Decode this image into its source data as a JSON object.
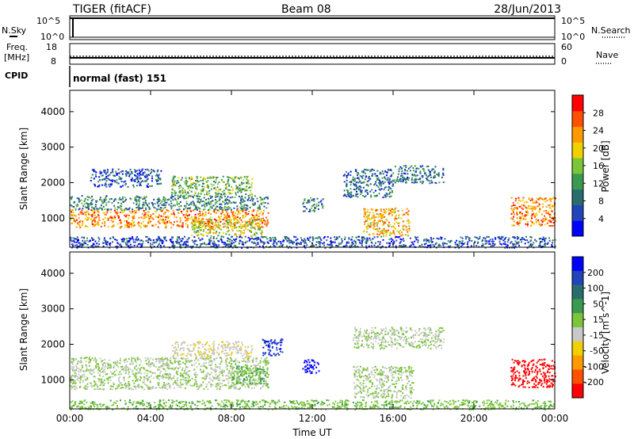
{
  "header": {
    "radar": "TIGER (fitACF)",
    "beam": "Beam 08",
    "date": "28/Jun/2013"
  },
  "sky_panel": {
    "left_label": "N.Sky",
    "right_label": "N.Search",
    "ticks": [
      "10^5",
      "10^0"
    ]
  },
  "freq_panel": {
    "left_label_1": "Freq.",
    "left_label_2": "[MHz]",
    "left_ticks": [
      "18",
      "8"
    ],
    "right_label": "Nave",
    "right_ticks": [
      "60",
      "0"
    ]
  },
  "cpid": {
    "label": "CPID",
    "value": "normal (fast) 151"
  },
  "chart_data": [
    {
      "type": "heatmap",
      "name": "power",
      "ylabel": "Slant Range [km]",
      "xlabel": "",
      "ylim": [
        180,
        4600
      ],
      "yticks": [
        "1000",
        "2000",
        "3000",
        "4000"
      ],
      "xticks": [
        "00:00",
        "04:00",
        "08:00",
        "12:00",
        "16:00",
        "20:00",
        "00:00"
      ],
      "colorbar": {
        "label": "Power [dB]",
        "ticks": [
          "28",
          "24",
          "20",
          "16",
          "12",
          "8",
          "4"
        ],
        "colors": [
          "#0000ff",
          "#2244bb",
          "#2a6d6d",
          "#3a9a50",
          "#7bc53a",
          "#f0d000",
          "#ff9900",
          "#ff5000",
          "#ff0000"
        ]
      },
      "regions": [
        {
          "t0": 0.0,
          "t1": 9.8,
          "r0": 750,
          "r1": 1250,
          "value": 24
        },
        {
          "t0": 0.0,
          "t1": 9.8,
          "r0": 1250,
          "r1": 1650,
          "value": 10
        },
        {
          "t0": 1.0,
          "t1": 4.5,
          "r0": 1900,
          "r1": 2400,
          "value": 6
        },
        {
          "t0": 5.0,
          "t1": 9.0,
          "r0": 1650,
          "r1": 2200,
          "value": 14
        },
        {
          "t0": 6.0,
          "t1": 9.5,
          "r0": 500,
          "r1": 1000,
          "value": 18
        },
        {
          "t0": 11.5,
          "t1": 12.5,
          "r0": 1200,
          "r1": 1600,
          "value": 10
        },
        {
          "t0": 13.5,
          "t1": 16.0,
          "r0": 1600,
          "r1": 2400,
          "value": 8
        },
        {
          "t0": 14.5,
          "t1": 16.8,
          "r0": 500,
          "r1": 1300,
          "value": 22
        },
        {
          "t0": 16.0,
          "t1": 18.5,
          "r0": 2000,
          "r1": 2500,
          "value": 8
        },
        {
          "t0": 21.8,
          "t1": 24.0,
          "r0": 800,
          "r1": 1600,
          "value": 24
        },
        {
          "t0": 0.0,
          "t1": 24.0,
          "r0": 180,
          "r1": 500,
          "value": 6
        }
      ]
    },
    {
      "type": "heatmap",
      "name": "velocity",
      "ylabel": "Slant Range [km]",
      "xlabel": "Time UT",
      "ylim": [
        180,
        4600
      ],
      "yticks": [
        "1000",
        "2000",
        "3000",
        "4000"
      ],
      "xticks": [
        "00:00",
        "04:00",
        "08:00",
        "12:00",
        "16:00",
        "20:00",
        "00:00"
      ],
      "colorbar": {
        "label": "Velocity [m s^-1]",
        "ticks": [
          "200",
          "100",
          "50",
          "15",
          "-15",
          "-50",
          "-100",
          "-200"
        ],
        "colors": [
          "#0000ff",
          "#2244bb",
          "#2a6d6d",
          "#3a9a50",
          "#7bc53a",
          "#c8c8c8",
          "#f0d000",
          "#ff9900",
          "#ff5000",
          "#ff0000"
        ]
      },
      "regions": [
        {
          "t0": 0.0,
          "t1": 9.8,
          "r0": 750,
          "r1": 1650,
          "value": 0
        },
        {
          "t0": 5.0,
          "t1": 9.0,
          "r0": 1650,
          "r1": 2100,
          "value": -30
        },
        {
          "t0": 8.0,
          "t1": 9.8,
          "r0": 900,
          "r1": 1400,
          "value": 40
        },
        {
          "t0": 9.5,
          "t1": 10.5,
          "r0": 1700,
          "r1": 2200,
          "value": 150
        },
        {
          "t0": 11.5,
          "t1": 12.3,
          "r0": 1200,
          "r1": 1600,
          "value": 200
        },
        {
          "t0": 14.0,
          "t1": 17.0,
          "r0": 500,
          "r1": 1400,
          "value": 0
        },
        {
          "t0": 14.0,
          "t1": 18.5,
          "r0": 1900,
          "r1": 2500,
          "value": 0
        },
        {
          "t0": 21.8,
          "t1": 24.0,
          "r0": 800,
          "r1": 1600,
          "value": -180
        },
        {
          "t0": 0.0,
          "t1": 24.0,
          "r0": 180,
          "r1": 450,
          "value": 30
        }
      ]
    }
  ]
}
